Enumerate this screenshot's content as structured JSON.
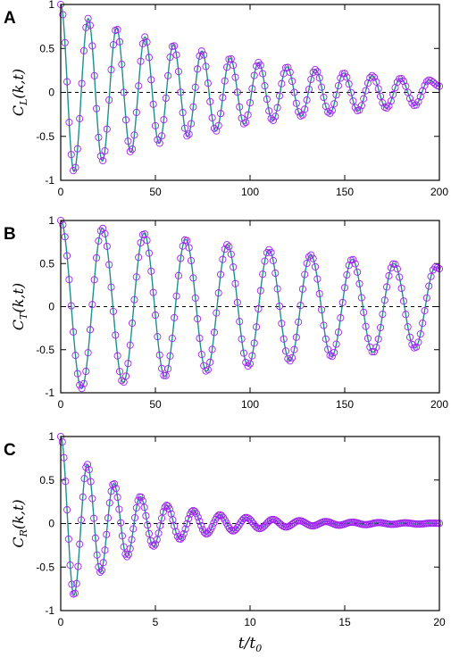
{
  "figure": {
    "xlabel": "t/t0"
  },
  "chart_data": [
    {
      "panel": "A",
      "type": "line",
      "ylabel": "C_L(k,t)",
      "xlim": [
        0,
        200
      ],
      "ylim": [
        -1,
        1
      ],
      "xticks": [
        0,
        50,
        100,
        150,
        200
      ],
      "yticks": [
        1,
        0.5,
        0,
        -0.5,
        -1
      ],
      "xtick_labels": [
        "0",
        "50",
        "100",
        "150",
        "200"
      ],
      "ytick_labels": [
        "1",
        "0.5",
        "0",
        "-0.5",
        "-1"
      ],
      "zero_line": "dashed",
      "series": [
        {
          "kind": "line",
          "color": "#1f8f8f",
          "x": [
            0,
            7,
            14.5,
            22,
            29.5,
            37,
            44.5,
            52,
            59.5,
            67,
            74.5,
            82,
            89.5,
            97,
            104.5,
            112,
            119.5,
            127,
            134.5,
            142,
            149.5,
            157,
            164.5,
            172,
            179.5,
            187,
            194.5,
            200
          ],
          "y": [
            1,
            -0.9,
            0.84,
            -0.78,
            0.73,
            -0.68,
            0.63,
            -0.58,
            0.54,
            -0.5,
            0.47,
            -0.44,
            0.39,
            -0.36,
            0.34,
            -0.32,
            0.29,
            -0.27,
            0.26,
            -0.24,
            0.22,
            -0.21,
            0.19,
            -0.18,
            0.16,
            -0.15,
            0.14,
            0.07
          ]
        },
        {
          "kind": "markers",
          "marker": "open-circle",
          "color": "#a020f0",
          "x": [
            0,
            7,
            14.5,
            22,
            29.5,
            37,
            44.5,
            52,
            59.5,
            67,
            74.5,
            82,
            89.5,
            97,
            104.5,
            112,
            119.5,
            127,
            134.5,
            142,
            149.5,
            157,
            164.5,
            172,
            179.5,
            187,
            194.5,
            200
          ],
          "y": [
            1,
            -0.9,
            0.84,
            -0.78,
            0.73,
            -0.68,
            0.63,
            -0.58,
            0.54,
            -0.5,
            0.47,
            -0.44,
            0.39,
            -0.36,
            0.34,
            -0.32,
            0.29,
            -0.27,
            0.26,
            -0.24,
            0.22,
            -0.21,
            0.19,
            -0.18,
            0.16,
            -0.15,
            0.14,
            0.07
          ]
        }
      ]
    },
    {
      "panel": "B",
      "type": "line",
      "ylabel": "C_T(k,t)",
      "xlim": [
        0,
        200
      ],
      "ylim": [
        -1,
        1
      ],
      "xticks": [
        0,
        50,
        100,
        150,
        200
      ],
      "yticks": [
        1,
        0.5,
        0,
        -0.5,
        -1
      ],
      "xtick_labels": [
        "0",
        "50",
        "100",
        "150",
        "200"
      ],
      "ytick_labels": [
        "1",
        "0.5",
        "0",
        "-0.5",
        "-1"
      ],
      "zero_line": "dashed",
      "series": [
        {
          "kind": "line",
          "color": "#1f8f8f",
          "x": [
            0,
            11,
            22,
            33,
            44,
            55,
            66,
            77,
            88,
            99,
            110,
            121,
            132,
            143,
            154,
            165,
            176,
            187,
            198,
            200
          ],
          "y": [
            1,
            -0.95,
            0.91,
            -0.88,
            0.85,
            -0.81,
            0.78,
            -0.75,
            0.72,
            -0.69,
            0.66,
            -0.63,
            0.6,
            -0.58,
            0.55,
            -0.53,
            0.5,
            -0.48,
            0.46,
            0.44
          ]
        },
        {
          "kind": "markers",
          "marker": "open-circle",
          "color": "#a020f0",
          "x": [
            0,
            11,
            22,
            33,
            44,
            55,
            66,
            77,
            88,
            99,
            110,
            121,
            132,
            143,
            154,
            165,
            176,
            187,
            198,
            200
          ],
          "y": [
            1,
            -0.95,
            0.91,
            -0.88,
            0.85,
            -0.81,
            0.78,
            -0.75,
            0.72,
            -0.69,
            0.66,
            -0.63,
            0.6,
            -0.58,
            0.55,
            -0.53,
            0.5,
            -0.48,
            0.46,
            0.44
          ]
        }
      ]
    },
    {
      "panel": "C",
      "type": "line",
      "ylabel": "C_R(k,t)",
      "xlim": [
        0,
        20
      ],
      "ylim": [
        -1,
        1
      ],
      "xticks": [
        0,
        5,
        10,
        15,
        20
      ],
      "yticks": [
        1,
        0.5,
        0,
        -0.5,
        -1
      ],
      "xtick_labels": [
        "0",
        "5",
        "10",
        "15",
        "20"
      ],
      "ytick_labels": [
        "1",
        "0.5",
        "0",
        "-0.5",
        "-1"
      ],
      "zero_line": "dashed",
      "series": [
        {
          "kind": "line",
          "color": "#1f8f8f",
          "x": [
            0,
            0.7,
            1.4,
            2.1,
            2.8,
            3.5,
            4.2,
            4.9,
            5.6,
            6.3,
            7.0,
            7.7,
            8.4,
            9.1,
            9.8,
            10.5,
            11.2,
            11.9,
            12.6,
            13.3,
            14.0,
            14.7,
            15.4,
            16.1,
            16.8,
            17.5,
            18.2,
            18.9,
            19.6,
            20
          ],
          "y": [
            1,
            -0.82,
            0.68,
            -0.56,
            0.46,
            -0.38,
            0.31,
            -0.26,
            0.21,
            -0.18,
            0.15,
            -0.12,
            0.1,
            -0.085,
            0.07,
            -0.058,
            0.048,
            -0.04,
            0.033,
            -0.027,
            0.023,
            -0.019,
            0.016,
            -0.013,
            0.011,
            -0.009,
            0.008,
            -0.006,
            0.005,
            0.003
          ]
        },
        {
          "kind": "markers",
          "marker": "open-circle",
          "color": "#a020f0",
          "x": [
            0,
            0.7,
            1.4,
            2.1,
            2.8,
            3.5,
            4.2,
            4.9,
            5.6,
            6.3,
            7.0,
            7.7,
            8.4,
            9.1,
            9.8,
            10.5,
            11.2,
            11.9,
            12.6,
            13.3,
            14.0,
            14.7,
            15.4,
            16.1,
            16.8,
            17.5,
            18.2,
            18.9,
            19.6,
            20
          ],
          "y": [
            1,
            -0.82,
            0.68,
            -0.56,
            0.46,
            -0.38,
            0.31,
            -0.26,
            0.21,
            -0.18,
            0.15,
            -0.12,
            0.1,
            -0.085,
            0.07,
            -0.058,
            0.048,
            -0.04,
            0.033,
            -0.027,
            0.023,
            -0.019,
            0.016,
            -0.013,
            0.011,
            -0.009,
            0.008,
            -0.006,
            0.005,
            0.003
          ]
        }
      ]
    }
  ]
}
